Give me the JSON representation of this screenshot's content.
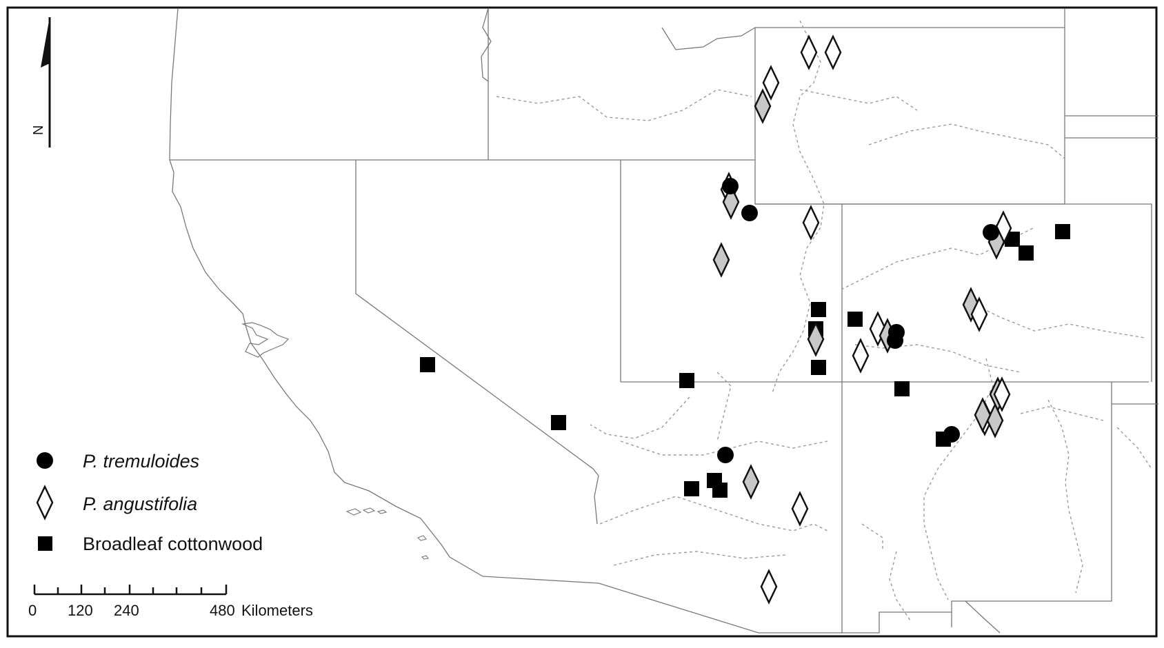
{
  "north_arrow": {
    "label": "N"
  },
  "legend": {
    "items": [
      {
        "symbol": "circle",
        "label": "P. tremuloides",
        "italic": true
      },
      {
        "symbol": "diamond",
        "label": "P. angustifolia",
        "italic": true
      },
      {
        "symbol": "square",
        "label": "Broadleaf cottonwood",
        "italic": false
      }
    ]
  },
  "scale_bar": {
    "ticks": [
      "0",
      "120",
      "240",
      "480"
    ],
    "unit": "Kilometers"
  },
  "colors": {
    "border": "#777777",
    "river": "#9a9a9a",
    "marker_dark": "#000000",
    "diamond_gray": "#c8c8c8",
    "frame": "#111111"
  }
}
